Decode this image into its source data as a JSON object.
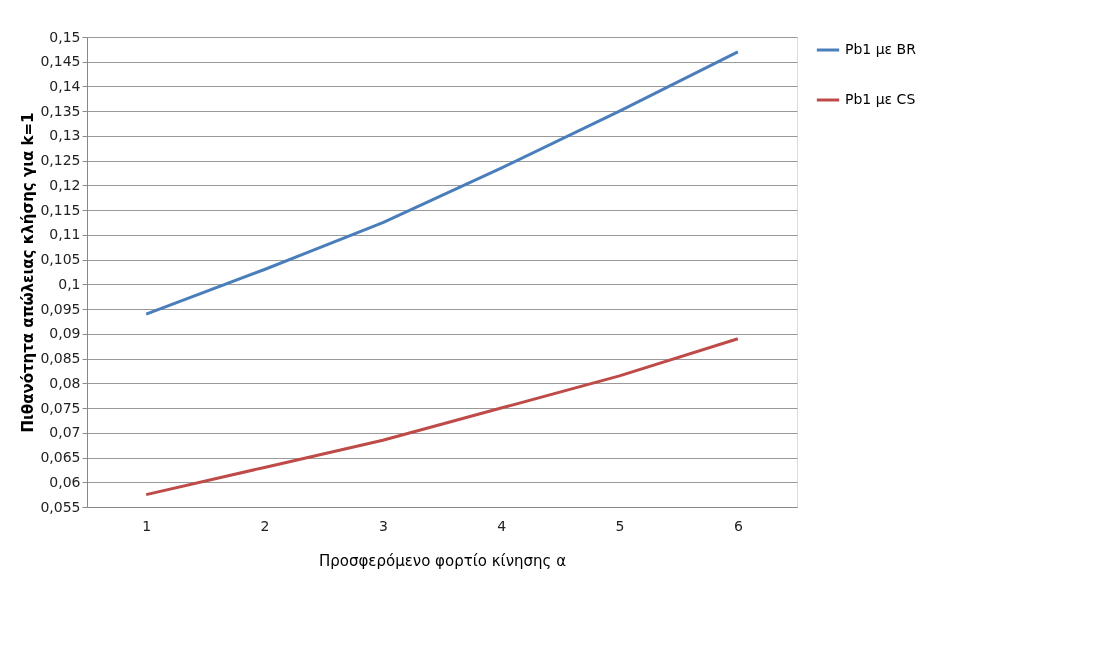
{
  "chart_data": {
    "type": "line",
    "xlabel": "Προσφερόμενο φορτίο κίνησης α",
    "ylabel": "Πιθανότητα απώλειας κλήσης για k=1",
    "categories": [
      "1",
      "2",
      "3",
      "4",
      "5",
      "6"
    ],
    "series": [
      {
        "name": "Pb1 με BR",
        "color": "#4a7ebb",
        "values": [
          0.094,
          0.103,
          0.1125,
          0.1235,
          0.135,
          0.147
        ]
      },
      {
        "name": "Pb1 με CS",
        "color": "#be4b48",
        "values": [
          0.0575,
          0.063,
          0.0685,
          0.075,
          0.0815,
          0.089
        ]
      }
    ],
    "ylim": [
      0.055,
      0.15
    ],
    "yticks": [
      {
        "value": 0.055,
        "label": "0,055"
      },
      {
        "value": 0.06,
        "label": "0,06"
      },
      {
        "value": 0.065,
        "label": "0,065"
      },
      {
        "value": 0.07,
        "label": "0,07"
      },
      {
        "value": 0.075,
        "label": "0,075"
      },
      {
        "value": 0.08,
        "label": "0,08"
      },
      {
        "value": 0.085,
        "label": "0,085"
      },
      {
        "value": 0.09,
        "label": "0,09"
      },
      {
        "value": 0.095,
        "label": "0,095"
      },
      {
        "value": 0.1,
        "label": "0,1"
      },
      {
        "value": 0.105,
        "label": "0,105"
      },
      {
        "value": 0.11,
        "label": "0,11"
      },
      {
        "value": 0.115,
        "label": "0,115"
      },
      {
        "value": 0.12,
        "label": "0,12"
      },
      {
        "value": 0.125,
        "label": "0,125"
      },
      {
        "value": 0.13,
        "label": "0,13"
      },
      {
        "value": 0.135,
        "label": "0,135"
      },
      {
        "value": 0.14,
        "label": "0,14"
      },
      {
        "value": 0.145,
        "label": "0,145"
      },
      {
        "value": 0.15,
        "label": "0,15"
      }
    ],
    "grid": "y",
    "legend": "right",
    "marker": "none",
    "line_style": "solid"
  }
}
